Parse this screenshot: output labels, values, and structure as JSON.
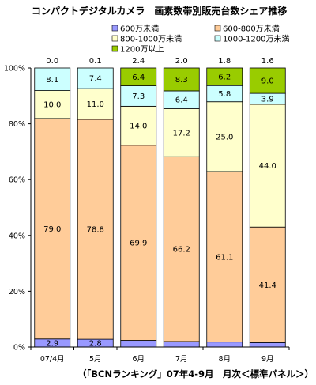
{
  "chart_data": {
    "type": "bar",
    "stacked": true,
    "percent": true,
    "title": "コンパクトデジタルカメラ　画素数帯別販売台数シェア推移",
    "source": "（「BCNランキング」07年4-9月　月次＜標準パネル＞）",
    "categories": [
      "07/4月",
      "5月",
      "6月",
      "7月",
      "8月",
      "9月"
    ],
    "ylim": [
      0,
      100
    ],
    "yticks": [
      "0%",
      "20%",
      "40%",
      "60%",
      "80%",
      "100%"
    ],
    "yticks_values": [
      0,
      20,
      40,
      60,
      80,
      100
    ],
    "grid": false,
    "legend_position": "top-right",
    "series": [
      {
        "name": "600万未満",
        "color": "#9999ff",
        "values": [
          2.9,
          2.8,
          2.4,
          2.0,
          1.8,
          1.6
        ]
      },
      {
        "name": "600-800万未満",
        "color": "#ffcc99",
        "values": [
          79.0,
          78.8,
          69.9,
          66.2,
          61.1,
          41.4
        ]
      },
      {
        "name": "800-1000万未満",
        "color": "#ffffcc",
        "values": [
          10.0,
          11.0,
          14.0,
          17.2,
          25.0,
          44.0
        ]
      },
      {
        "name": "1000-1200万未満",
        "color": "#ccffff",
        "values": [
          8.1,
          7.4,
          7.3,
          6.4,
          5.8,
          3.9
        ]
      },
      {
        "name": "1200万以上",
        "color": "#99cc00",
        "values": [
          0.0,
          0.1,
          6.4,
          8.3,
          6.2,
          9.0
        ]
      }
    ],
    "labels": [
      [
        "2.9",
        "2.8",
        "2.4",
        "2.0",
        "1.8",
        "1.6"
      ],
      [
        "79.0",
        "78.8",
        "69.9",
        "66.2",
        "61.1",
        "41.4"
      ],
      [
        "10.0",
        "11.0",
        "14.0",
        "17.2",
        "25.0",
        "44.0"
      ],
      [
        "8.1",
        "7.4",
        "7.3",
        "6.4",
        "5.8",
        "3.9"
      ],
      [
        "0.0",
        "0.1",
        "6.4",
        "8.3",
        "6.2",
        "9.0"
      ]
    ]
  }
}
